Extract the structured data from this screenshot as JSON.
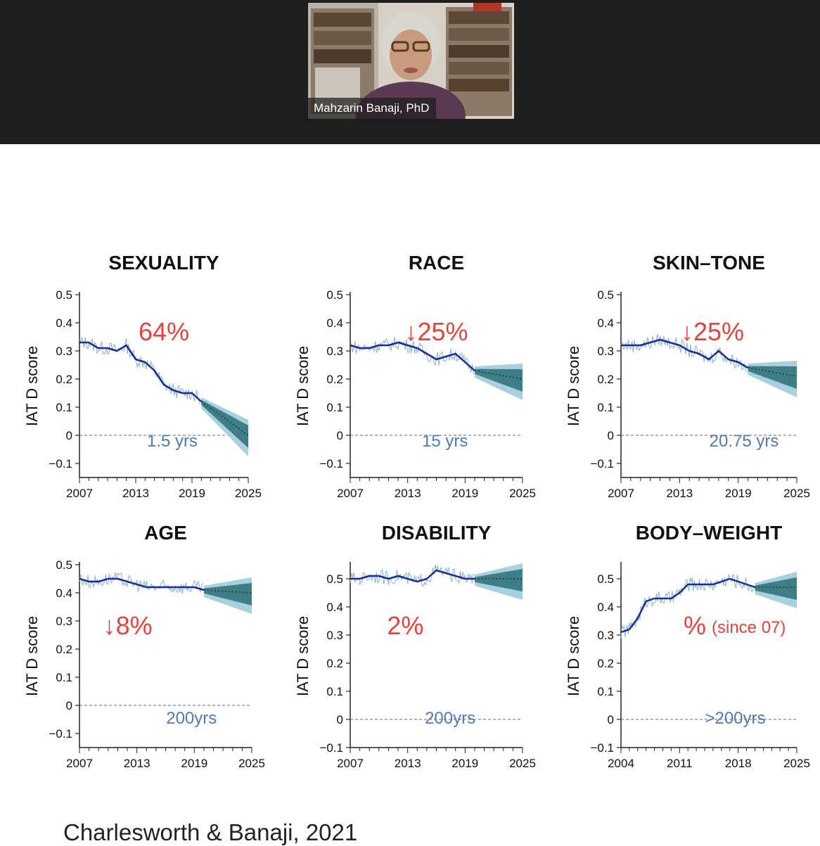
{
  "meeting": {
    "speaker_name": "Mahzarin Banaji, PhD"
  },
  "slide": {
    "citation": "Charlesworth & Banaji, 2021"
  },
  "colors": {
    "trend_line": "#1c2a9c",
    "raw_data": "#8fb9c9",
    "forecast_outer": "#a9d0de",
    "forecast_inner": "#3e7f86",
    "annotation_red": "#e8413a",
    "annotation_blue": "#4f79b8",
    "top_bar": "#1e1e1e"
  },
  "chart_data": [
    {
      "type": "line",
      "title": "SEXUALITY",
      "ylabel": "IAT D score",
      "ylim": [
        -0.15,
        0.5
      ],
      "yticks": [
        "0.5",
        "0.4",
        "0.3",
        "0.2",
        "0.1",
        "0",
        "−0.1"
      ],
      "ytick_values": [
        0.5,
        0.4,
        0.3,
        0.2,
        0.1,
        0,
        -0.1
      ],
      "xlim": [
        2007,
        2025
      ],
      "xticks": [
        2007,
        2013,
        2019,
        2025
      ],
      "change_label": "64%",
      "time_to_neutral": "1.5 yrs",
      "series": [
        {
          "role": "observed",
          "x": [
            2007,
            2008,
            2009,
            2010,
            2011,
            2012,
            2013,
            2014,
            2015,
            2016,
            2017,
            2018,
            2019,
            2020
          ],
          "y": [
            0.33,
            0.33,
            0.31,
            0.31,
            0.3,
            0.32,
            0.27,
            0.26,
            0.23,
            0.18,
            0.16,
            0.15,
            0.15,
            0.12
          ]
        },
        {
          "role": "forecast",
          "x": [
            2020,
            2025
          ],
          "y": [
            0.12,
            0.0
          ]
        }
      ]
    },
    {
      "type": "line",
      "title": "RACE",
      "ylabel": "IAT D score",
      "ylim": [
        -0.15,
        0.5
      ],
      "yticks": [
        "0.5",
        "0.4",
        "0.3",
        "0.2",
        "0.1",
        "0",
        "−0.1"
      ],
      "ytick_values": [
        0.5,
        0.4,
        0.3,
        0.2,
        0.1,
        0,
        -0.1
      ],
      "xlim": [
        2007,
        2025
      ],
      "xticks": [
        2007,
        2013,
        2019,
        2025
      ],
      "change_label": "↓25%",
      "time_to_neutral": "15 yrs",
      "series": [
        {
          "role": "observed",
          "x": [
            2007,
            2008,
            2009,
            2010,
            2011,
            2012,
            2013,
            2014,
            2015,
            2016,
            2017,
            2018,
            2019,
            2020
          ],
          "y": [
            0.32,
            0.31,
            0.31,
            0.32,
            0.32,
            0.33,
            0.32,
            0.31,
            0.29,
            0.27,
            0.28,
            0.29,
            0.26,
            0.23
          ]
        },
        {
          "role": "forecast",
          "x": [
            2020,
            2025
          ],
          "y": [
            0.23,
            0.2
          ]
        }
      ]
    },
    {
      "type": "line",
      "title": "SKIN–TONE",
      "ylabel": "IAT D score",
      "ylim": [
        -0.15,
        0.5
      ],
      "yticks": [
        "0.5",
        "0.4",
        "0.3",
        "0.2",
        "0.1",
        "0",
        "−0.1"
      ],
      "ytick_values": [
        0.5,
        0.4,
        0.3,
        0.2,
        0.1,
        0,
        -0.1
      ],
      "xlim": [
        2007,
        2025
      ],
      "xticks": [
        2007,
        2013,
        2019,
        2025
      ],
      "change_label": "↓25%",
      "time_to_neutral": "20.75 yrs",
      "series": [
        {
          "role": "observed",
          "x": [
            2007,
            2008,
            2009,
            2010,
            2011,
            2012,
            2013,
            2014,
            2015,
            2016,
            2017,
            2018,
            2019,
            2020
          ],
          "y": [
            0.32,
            0.32,
            0.32,
            0.33,
            0.34,
            0.33,
            0.32,
            0.3,
            0.29,
            0.27,
            0.3,
            0.27,
            0.26,
            0.24
          ]
        },
        {
          "role": "forecast",
          "x": [
            2020,
            2025
          ],
          "y": [
            0.24,
            0.21
          ]
        }
      ]
    },
    {
      "type": "line",
      "title": "AGE",
      "ylabel": "IAT D score",
      "ylim": [
        -0.15,
        0.5
      ],
      "yticks": [
        "0.5",
        "0.4",
        "0.3",
        "0.2",
        "0.1",
        "0",
        "−0.1"
      ],
      "ytick_values": [
        0.5,
        0.4,
        0.3,
        0.2,
        0.1,
        0,
        -0.1
      ],
      "xlim": [
        2007,
        2025
      ],
      "xticks": [
        2007,
        2013,
        2019,
        2025
      ],
      "change_label": "↓8%",
      "time_to_neutral": "200yrs",
      "series": [
        {
          "role": "observed",
          "x": [
            2007,
            2008,
            2009,
            2010,
            2011,
            2012,
            2013,
            2014,
            2015,
            2016,
            2017,
            2018,
            2019,
            2020
          ],
          "y": [
            0.45,
            0.44,
            0.44,
            0.45,
            0.45,
            0.44,
            0.43,
            0.42,
            0.42,
            0.42,
            0.42,
            0.42,
            0.42,
            0.41
          ]
        },
        {
          "role": "forecast",
          "x": [
            2020,
            2025
          ],
          "y": [
            0.41,
            0.4
          ]
        }
      ]
    },
    {
      "type": "line",
      "title": "DISABILITY",
      "ylabel": "IAT D score",
      "ylim": [
        -0.1,
        0.55
      ],
      "yticks": [
        "0.5",
        "0.4",
        "0.3",
        "0.2",
        "0.1",
        "0",
        "−0.1"
      ],
      "ytick_values": [
        0.5,
        0.4,
        0.3,
        0.2,
        0.1,
        0,
        -0.1
      ],
      "xlim": [
        2007,
        2025
      ],
      "xticks": [
        2007,
        2013,
        2019,
        2025
      ],
      "change_label": "2%",
      "time_to_neutral": "200yrs",
      "series": [
        {
          "role": "observed",
          "x": [
            2007,
            2008,
            2009,
            2010,
            2011,
            2012,
            2013,
            2014,
            2015,
            2016,
            2017,
            2018,
            2019,
            2020
          ],
          "y": [
            0.5,
            0.5,
            0.51,
            0.51,
            0.5,
            0.51,
            0.5,
            0.49,
            0.5,
            0.53,
            0.52,
            0.51,
            0.5,
            0.5
          ]
        },
        {
          "role": "forecast",
          "x": [
            2020,
            2025
          ],
          "y": [
            0.5,
            0.5
          ]
        }
      ]
    },
    {
      "type": "line",
      "title": "BODY–WEIGHT",
      "ylabel": "IAT D score",
      "ylim": [
        -0.1,
        0.55
      ],
      "yticks": [
        "0.5",
        "0.4",
        "0.3",
        "0.2",
        "0.1",
        "0",
        "−0.1"
      ],
      "ytick_values": [
        0.5,
        0.4,
        0.3,
        0.2,
        0.1,
        0,
        -0.1
      ],
      "xlim": [
        2004,
        2025
      ],
      "xticks": [
        2004,
        2011,
        2018,
        2025
      ],
      "change_label": "%",
      "change_note": "(since 07)",
      "time_to_neutral": ">200yrs",
      "series": [
        {
          "role": "observed",
          "x": [
            2004,
            2005,
            2006,
            2007,
            2008,
            2009,
            2010,
            2011,
            2012,
            2013,
            2014,
            2015,
            2016,
            2017,
            2018,
            2019,
            2020
          ],
          "y": [
            0.31,
            0.32,
            0.36,
            0.42,
            0.43,
            0.43,
            0.43,
            0.45,
            0.48,
            0.48,
            0.48,
            0.48,
            0.49,
            0.5,
            0.49,
            0.48,
            0.47
          ]
        },
        {
          "role": "forecast",
          "x": [
            2020,
            2025
          ],
          "y": [
            0.47,
            0.47
          ]
        }
      ]
    }
  ]
}
